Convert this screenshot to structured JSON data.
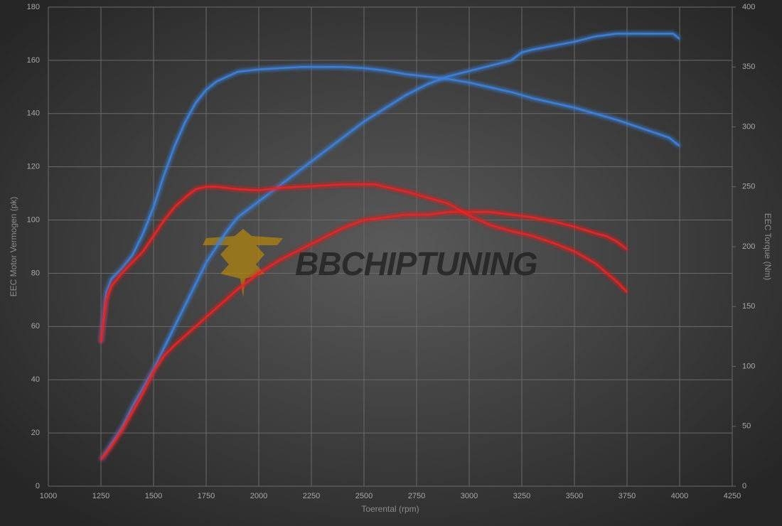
{
  "chart_data": {
    "type": "line",
    "watermark": "BBCHIPTUNING",
    "xlabel": "Toerental (rpm)",
    "ylabel": "EEC Motor Vermogen (pk)",
    "y2label": "EEC Torque (Nm)",
    "xlim": [
      1000,
      4250
    ],
    "xticks": [
      1000,
      1250,
      1500,
      1750,
      2000,
      2250,
      2500,
      2750,
      3000,
      3250,
      3500,
      3750,
      4000,
      4250
    ],
    "ylim": [
      0,
      180
    ],
    "yticks": [
      0,
      20,
      40,
      60,
      80,
      100,
      120,
      140,
      160,
      180
    ],
    "y2lim": [
      0,
      400
    ],
    "y2ticks": [
      0,
      50,
      100,
      150,
      200,
      250,
      300,
      350,
      400
    ],
    "grid": true,
    "series": [
      {
        "color": "#3d7fd6",
        "x": [
          1250,
          1300,
          1350,
          1400,
          1450,
          1500,
          1550,
          1600,
          1650,
          1700,
          1750,
          1800,
          1850,
          1900,
          2000,
          2100,
          2200,
          2300,
          2400,
          2500,
          2600,
          2700,
          2800,
          2900,
          3000,
          3100,
          3200,
          3250,
          3300,
          3400,
          3500,
          3600,
          3700,
          3800,
          3900,
          3970,
          4000
        ],
        "values": [
          10,
          16,
          22,
          30,
          37,
          44,
          52,
          60,
          68,
          76,
          84,
          90,
          96,
          101,
          107,
          113,
          119,
          125,
          131,
          137,
          142,
          147,
          151,
          154,
          156,
          158,
          160,
          163,
          164,
          165.5,
          167,
          169,
          170,
          170,
          170,
          170,
          168
        ]
      },
      {
        "color": "#e02828",
        "x": [
          1250,
          1300,
          1350,
          1400,
          1450,
          1500,
          1550,
          1600,
          1700,
          1800,
          1900,
          2000,
          2100,
          2200,
          2300,
          2400,
          2500,
          2600,
          2700,
          2800,
          2900,
          3000,
          3100,
          3200,
          3300,
          3400,
          3500,
          3600,
          3650,
          3700,
          3750
        ],
        "values": [
          10,
          15,
          21,
          28,
          35,
          43,
          49,
          53,
          60,
          67,
          74,
          80,
          85,
          89,
          93,
          97,
          100,
          101,
          102,
          102,
          103,
          103,
          103,
          102,
          101,
          99.5,
          97.5,
          95,
          94,
          92,
          89
        ]
      },
      {
        "color": "#3d7fd6",
        "axis": "y2",
        "x": [
          1250,
          1275,
          1300,
          1350,
          1400,
          1450,
          1500,
          1550,
          1600,
          1650,
          1700,
          1750,
          1800,
          1900,
          2000,
          2200,
          2400,
          2500,
          2600,
          2700,
          2800,
          2900,
          3000,
          3100,
          3200,
          3300,
          3400,
          3500,
          3600,
          3700,
          3800,
          3900,
          3950,
          4000
        ],
        "values": [
          120,
          162,
          173,
          182,
          193,
          211,
          233,
          260,
          284,
          304,
          320,
          331,
          338,
          346,
          348,
          350,
          350,
          349,
          347,
          344,
          342,
          340,
          337,
          333,
          329,
          324,
          320,
          316,
          311,
          306,
          300,
          294,
          291,
          284
        ]
      },
      {
        "color": "#e02828",
        "axis": "y2",
        "x": [
          1250,
          1275,
          1300,
          1350,
          1400,
          1450,
          1500,
          1550,
          1600,
          1650,
          1700,
          1750,
          1800,
          1900,
          2000,
          2100,
          2200,
          2300,
          2400,
          2500,
          2550,
          2600,
          2700,
          2800,
          2900,
          3000,
          3100,
          3200,
          3300,
          3400,
          3500,
          3600,
          3700,
          3750
        ],
        "values": [
          120,
          155,
          167,
          178,
          187,
          196,
          209,
          222,
          233,
          241,
          248,
          250,
          250,
          248,
          247,
          249,
          250,
          251,
          252,
          252,
          252,
          250,
          246,
          241,
          236,
          226,
          218,
          213,
          209,
          203,
          196,
          186,
          171,
          162
        ]
      }
    ]
  }
}
